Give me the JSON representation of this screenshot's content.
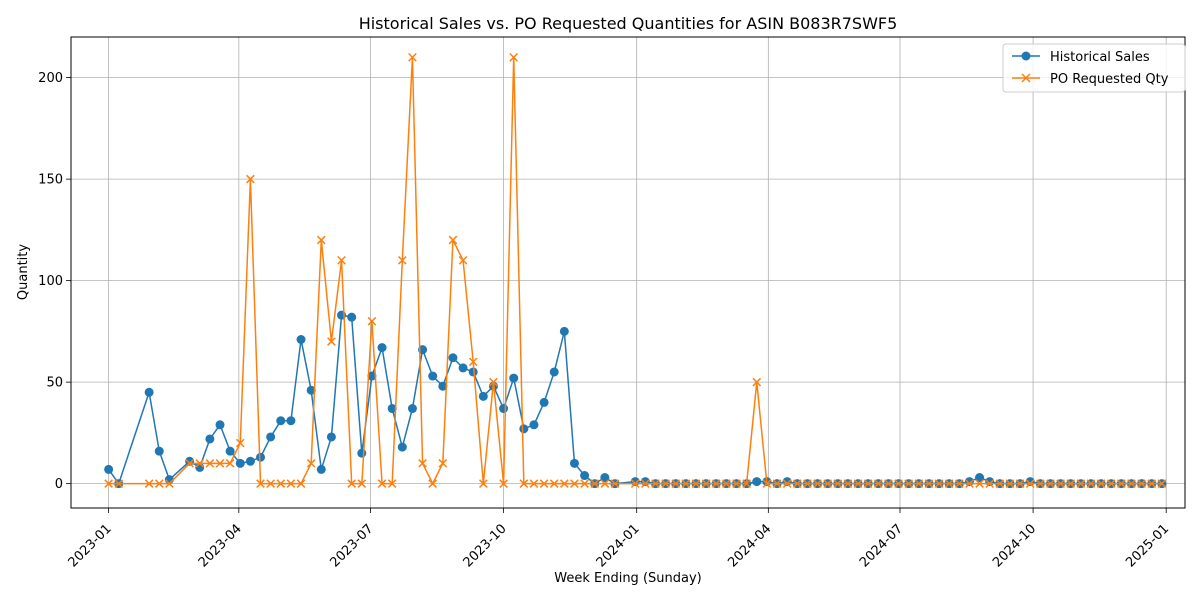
{
  "chart_data": {
    "type": "line",
    "title": "Historical Sales vs. PO Requested Quantities for ASIN B083R7SWF5",
    "xlabel": "Week Ending (Sunday)",
    "ylabel": "Quantity",
    "xlim": [
      "2022-12-06",
      "2025-01-14"
    ],
    "ylim": [
      -12,
      220
    ],
    "x_ticks": [
      "2023-01-01",
      "2023-04-01",
      "2023-07-01",
      "2023-10-01",
      "2024-01-01",
      "2024-04-01",
      "2024-07-01",
      "2024-10-01",
      "2025-01-01"
    ],
    "x_tick_labels": [
      "2023-01",
      "2023-04",
      "2023-07",
      "2023-10",
      "2024-01",
      "2024-04",
      "2024-07",
      "2024-10",
      "2025-01"
    ],
    "y_ticks": [
      0,
      50,
      100,
      150,
      200
    ],
    "y_tick_labels": [
      "0",
      "50",
      "100",
      "150",
      "200"
    ],
    "grid": true,
    "legend_position": "top-right",
    "colors": {
      "sales": "#1f77b4",
      "po": "#ff7f0e",
      "grid": "#b0b0b0"
    },
    "series": [
      {
        "name": "Historical Sales",
        "marker": "circle",
        "points": [
          [
            "2023-01-01",
            7
          ],
          [
            "2023-01-08",
            0
          ],
          [
            "2023-01-29",
            45
          ],
          [
            "2023-02-05",
            16
          ],
          [
            "2023-02-12",
            2
          ],
          [
            "2023-02-26",
            11
          ],
          [
            "2023-03-05",
            8
          ],
          [
            "2023-03-12",
            22
          ],
          [
            "2023-03-19",
            29
          ],
          [
            "2023-03-26",
            16
          ],
          [
            "2023-04-02",
            10
          ],
          [
            "2023-04-09",
            11
          ],
          [
            "2023-04-16",
            13
          ],
          [
            "2023-04-23",
            23
          ],
          [
            "2023-04-30",
            31
          ],
          [
            "2023-05-07",
            31
          ],
          [
            "2023-05-14",
            71
          ],
          [
            "2023-05-21",
            46
          ],
          [
            "2023-05-28",
            7
          ],
          [
            "2023-06-04",
            23
          ],
          [
            "2023-06-11",
            83
          ],
          [
            "2023-06-18",
            82
          ],
          [
            "2023-06-25",
            15
          ],
          [
            "2023-07-02",
            53
          ],
          [
            "2023-07-09",
            67
          ],
          [
            "2023-07-16",
            37
          ],
          [
            "2023-07-23",
            18
          ],
          [
            "2023-07-30",
            37
          ],
          [
            "2023-08-06",
            66
          ],
          [
            "2023-08-13",
            53
          ],
          [
            "2023-08-20",
            48
          ],
          [
            "2023-08-27",
            62
          ],
          [
            "2023-09-03",
            57
          ],
          [
            "2023-09-10",
            55
          ],
          [
            "2023-09-17",
            43
          ],
          [
            "2023-09-24",
            48
          ],
          [
            "2023-10-01",
            37
          ],
          [
            "2023-10-08",
            52
          ],
          [
            "2023-10-15",
            27
          ],
          [
            "2023-10-22",
            29
          ],
          [
            "2023-10-29",
            40
          ],
          [
            "2023-11-05",
            55
          ],
          [
            "2023-11-12",
            75
          ],
          [
            "2023-11-19",
            10
          ],
          [
            "2023-11-26",
            4
          ],
          [
            "2023-12-03",
            0
          ],
          [
            "2023-12-10",
            3
          ],
          [
            "2023-12-17",
            0
          ],
          [
            "2023-12-31",
            1
          ],
          [
            "2024-01-07",
            1
          ],
          [
            "2024-01-14",
            0
          ],
          [
            "2024-01-21",
            0
          ],
          [
            "2024-01-28",
            0
          ],
          [
            "2024-02-04",
            0
          ],
          [
            "2024-02-11",
            0
          ],
          [
            "2024-02-18",
            0
          ],
          [
            "2024-02-25",
            0
          ],
          [
            "2024-03-03",
            0
          ],
          [
            "2024-03-10",
            0
          ],
          [
            "2024-03-17",
            0
          ],
          [
            "2024-03-24",
            1
          ],
          [
            "2024-03-31",
            1
          ],
          [
            "2024-04-07",
            0
          ],
          [
            "2024-04-14",
            1
          ],
          [
            "2024-04-21",
            0
          ],
          [
            "2024-04-28",
            0
          ],
          [
            "2024-05-05",
            0
          ],
          [
            "2024-05-12",
            0
          ],
          [
            "2024-05-19",
            0
          ],
          [
            "2024-05-26",
            0
          ],
          [
            "2024-06-02",
            0
          ],
          [
            "2024-06-09",
            0
          ],
          [
            "2024-06-16",
            0
          ],
          [
            "2024-06-23",
            0
          ],
          [
            "2024-06-30",
            0
          ],
          [
            "2024-07-07",
            0
          ],
          [
            "2024-07-14",
            0
          ],
          [
            "2024-07-21",
            0
          ],
          [
            "2024-07-28",
            0
          ],
          [
            "2024-08-04",
            0
          ],
          [
            "2024-08-11",
            0
          ],
          [
            "2024-08-18",
            1
          ],
          [
            "2024-08-25",
            3
          ],
          [
            "2024-09-01",
            1
          ],
          [
            "2024-09-08",
            0
          ],
          [
            "2024-09-15",
            0
          ],
          [
            "2024-09-22",
            0
          ],
          [
            "2024-09-29",
            1
          ],
          [
            "2024-10-06",
            0
          ],
          [
            "2024-10-13",
            0
          ],
          [
            "2024-10-20",
            0
          ],
          [
            "2024-10-27",
            0
          ],
          [
            "2024-11-03",
            0
          ],
          [
            "2024-11-10",
            0
          ],
          [
            "2024-11-17",
            0
          ],
          [
            "2024-11-24",
            0
          ],
          [
            "2024-12-01",
            0
          ],
          [
            "2024-12-08",
            0
          ],
          [
            "2024-12-15",
            0
          ],
          [
            "2024-12-22",
            0
          ],
          [
            "2024-12-29",
            0
          ]
        ]
      },
      {
        "name": "PO Requested Qty",
        "marker": "x",
        "points": [
          [
            "2023-01-01",
            0
          ],
          [
            "2023-01-08",
            0
          ],
          [
            "2023-01-29",
            0
          ],
          [
            "2023-02-05",
            0
          ],
          [
            "2023-02-12",
            0
          ],
          [
            "2023-02-26",
            10
          ],
          [
            "2023-03-05",
            10
          ],
          [
            "2023-03-12",
            10
          ],
          [
            "2023-03-19",
            10
          ],
          [
            "2023-03-26",
            10
          ],
          [
            "2023-04-02",
            20
          ],
          [
            "2023-04-09",
            150
          ],
          [
            "2023-04-16",
            0
          ],
          [
            "2023-04-23",
            0
          ],
          [
            "2023-04-30",
            0
          ],
          [
            "2023-05-07",
            0
          ],
          [
            "2023-05-14",
            0
          ],
          [
            "2023-05-21",
            10
          ],
          [
            "2023-05-28",
            120
          ],
          [
            "2023-06-04",
            70
          ],
          [
            "2023-06-11",
            110
          ],
          [
            "2023-06-18",
            0
          ],
          [
            "2023-06-25",
            0
          ],
          [
            "2023-07-02",
            80
          ],
          [
            "2023-07-09",
            0
          ],
          [
            "2023-07-16",
            0
          ],
          [
            "2023-07-23",
            110
          ],
          [
            "2023-07-30",
            210
          ],
          [
            "2023-08-06",
            10
          ],
          [
            "2023-08-13",
            0
          ],
          [
            "2023-08-20",
            10
          ],
          [
            "2023-08-27",
            120
          ],
          [
            "2023-09-03",
            110
          ],
          [
            "2023-09-10",
            60
          ],
          [
            "2023-09-17",
            0
          ],
          [
            "2023-09-24",
            50
          ],
          [
            "2023-10-01",
            0
          ],
          [
            "2023-10-08",
            210
          ],
          [
            "2023-10-15",
            0
          ],
          [
            "2023-10-22",
            0
          ],
          [
            "2023-10-29",
            0
          ],
          [
            "2023-11-05",
            0
          ],
          [
            "2023-11-12",
            0
          ],
          [
            "2023-11-19",
            0
          ],
          [
            "2023-11-26",
            0
          ],
          [
            "2023-12-03",
            0
          ],
          [
            "2023-12-10",
            0
          ],
          [
            "2023-12-17",
            0
          ],
          [
            "2023-12-31",
            0
          ],
          [
            "2024-01-07",
            0
          ],
          [
            "2024-01-14",
            0
          ],
          [
            "2024-01-21",
            0
          ],
          [
            "2024-01-28",
            0
          ],
          [
            "2024-02-04",
            0
          ],
          [
            "2024-02-11",
            0
          ],
          [
            "2024-02-18",
            0
          ],
          [
            "2024-02-25",
            0
          ],
          [
            "2024-03-03",
            0
          ],
          [
            "2024-03-10",
            0
          ],
          [
            "2024-03-17",
            0
          ],
          [
            "2024-03-24",
            50
          ],
          [
            "2024-03-31",
            0
          ],
          [
            "2024-04-07",
            0
          ],
          [
            "2024-04-14",
            0
          ],
          [
            "2024-04-21",
            0
          ],
          [
            "2024-04-28",
            0
          ],
          [
            "2024-05-05",
            0
          ],
          [
            "2024-05-12",
            0
          ],
          [
            "2024-05-19",
            0
          ],
          [
            "2024-05-26",
            0
          ],
          [
            "2024-06-02",
            0
          ],
          [
            "2024-06-09",
            0
          ],
          [
            "2024-06-16",
            0
          ],
          [
            "2024-06-23",
            0
          ],
          [
            "2024-06-30",
            0
          ],
          [
            "2024-07-07",
            0
          ],
          [
            "2024-07-14",
            0
          ],
          [
            "2024-07-21",
            0
          ],
          [
            "2024-07-28",
            0
          ],
          [
            "2024-08-04",
            0
          ],
          [
            "2024-08-11",
            0
          ],
          [
            "2024-08-18",
            0
          ],
          [
            "2024-08-25",
            0
          ],
          [
            "2024-09-01",
            0
          ],
          [
            "2024-09-08",
            0
          ],
          [
            "2024-09-15",
            0
          ],
          [
            "2024-09-22",
            0
          ],
          [
            "2024-09-29",
            0
          ],
          [
            "2024-10-06",
            0
          ],
          [
            "2024-10-13",
            0
          ],
          [
            "2024-10-20",
            0
          ],
          [
            "2024-10-27",
            0
          ],
          [
            "2024-11-03",
            0
          ],
          [
            "2024-11-10",
            0
          ],
          [
            "2024-11-17",
            0
          ],
          [
            "2024-11-24",
            0
          ],
          [
            "2024-12-01",
            0
          ],
          [
            "2024-12-08",
            0
          ],
          [
            "2024-12-15",
            0
          ],
          [
            "2024-12-22",
            0
          ],
          [
            "2024-12-29",
            0
          ]
        ]
      }
    ]
  }
}
